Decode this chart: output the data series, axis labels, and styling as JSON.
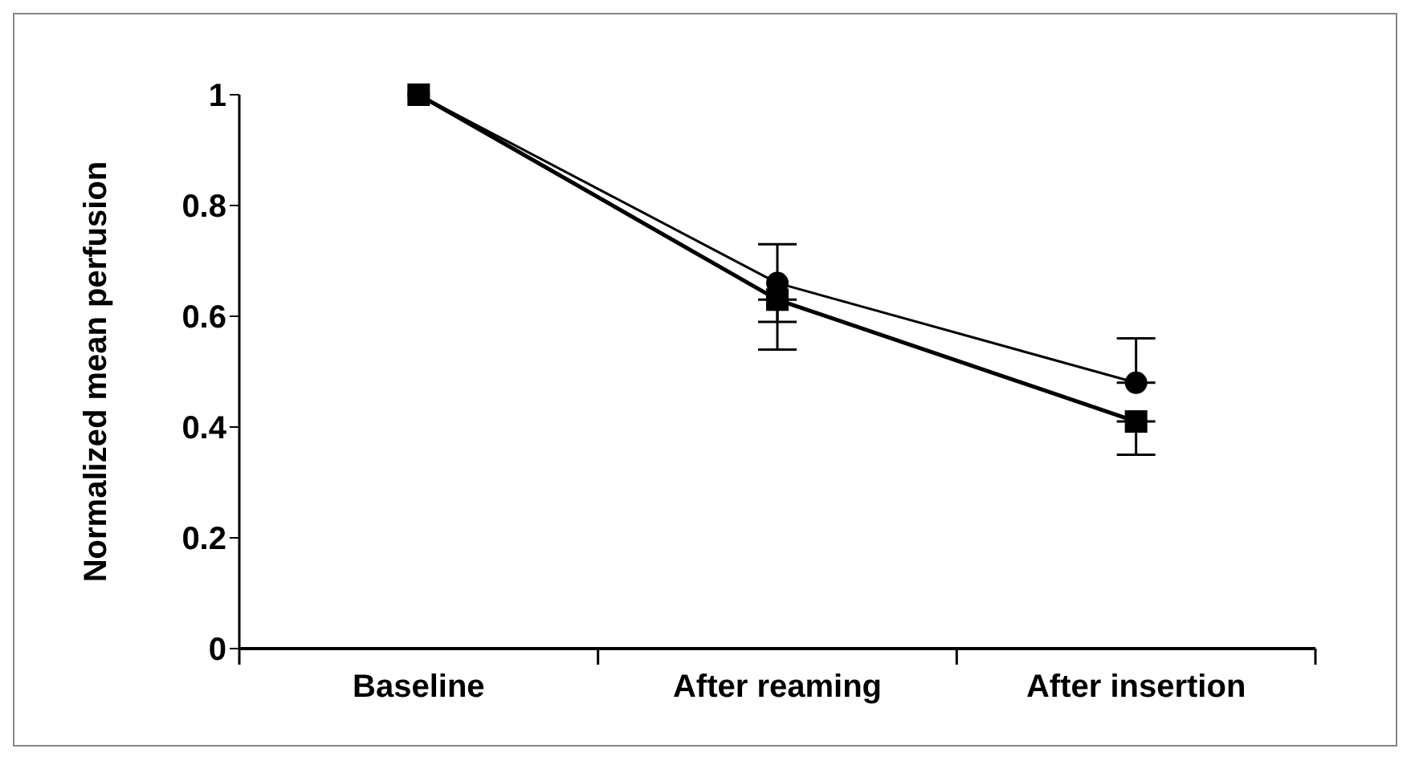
{
  "chart_data": {
    "type": "line",
    "ylabel": "Normalized mean perfusion",
    "categories": [
      "Baseline",
      "After reaming",
      "After insertion"
    ],
    "ylim": [
      0,
      1
    ],
    "yticks": [
      0,
      0.2,
      0.4,
      0.6,
      0.8,
      1
    ],
    "grid": false,
    "series": [
      {
        "color": "#000000",
        "marker": "circle",
        "values": [
          1,
          0.66,
          0.48
        ],
        "errors": [
          null,
          [
            0.59,
            0.73
          ],
          [
            0.48,
            0.56
          ]
        ]
      },
      {
        "color": "#000000",
        "marker": "square",
        "values": [
          1,
          0.63,
          0.41
        ],
        "errors": [
          null,
          [
            0.54,
            0.63
          ],
          [
            0.35,
            0.41
          ]
        ]
      }
    ]
  }
}
